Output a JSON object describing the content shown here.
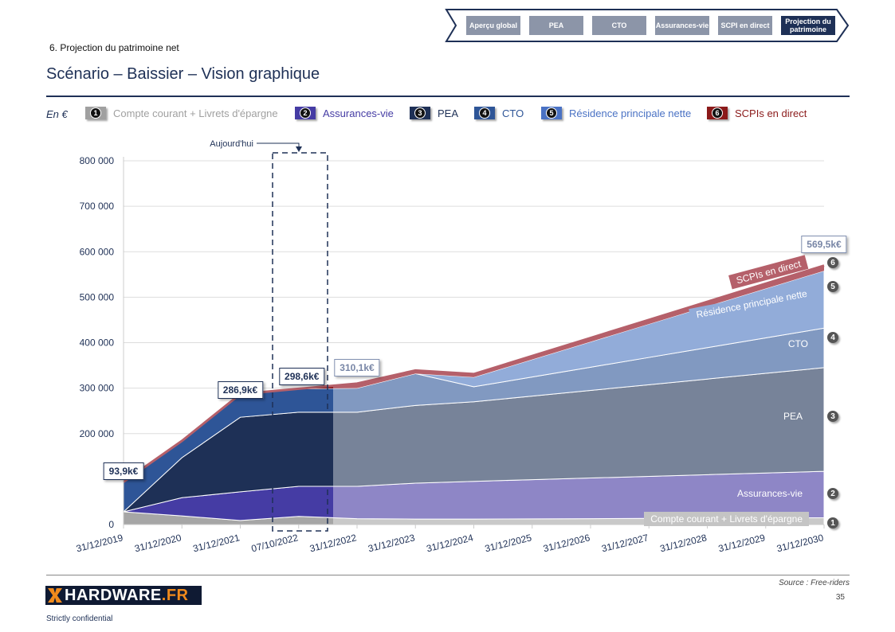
{
  "nav": {
    "items": [
      {
        "label": "Aperçu global",
        "active": false
      },
      {
        "label": "PEA",
        "active": false
      },
      {
        "label": "CTO",
        "active": false
      },
      {
        "label": "Assurances-vie",
        "active": false
      },
      {
        "label": "SCPI en direct",
        "active": false
      },
      {
        "label": "Projection du patrimoine",
        "active": true
      }
    ]
  },
  "header": {
    "section": "6. Projection du patrimoine net",
    "title": "Scénario – Baissier – Vision graphique"
  },
  "chart_data": {
    "type": "area",
    "stacked": true,
    "unit_label": "En €",
    "categories": [
      "31/12/2019",
      "31/12/2020",
      "31/12/2021",
      "07/10/2022",
      "31/12/2022",
      "31/12/2023",
      "31/12/2024",
      "31/12/2025",
      "31/12/2026",
      "31/12/2027",
      "31/12/2028",
      "31/12/2029",
      "31/12/2030"
    ],
    "ylim": [
      0,
      800000
    ],
    "yticks": [
      0,
      200000,
      300000,
      400000,
      500000,
      600000,
      700000,
      800000
    ],
    "ytick_labels": [
      "0",
      "200 000",
      "300 000",
      "400 000",
      "500 000",
      "600 000",
      "700 000",
      "800 000"
    ],
    "grid": true,
    "series": [
      {
        "num": "1",
        "name": "Compte courant + Livrets d'épargne",
        "color_hist": "#a6a6a6",
        "color_proj": "#c9c9c9",
        "legend_color": "#a0a0a0",
        "values": [
          28000,
          19000,
          9000,
          18000,
          13000,
          12000,
          12000,
          12500,
          13000,
          13500,
          14000,
          14500,
          15000
        ]
      },
      {
        "num": "2",
        "name": "Assurances-vie",
        "color_hist": "#453ca4",
        "color_proj": "#8e86c6",
        "legend_color": "#453ca4",
        "values": [
          0,
          40000,
          63000,
          66000,
          71000,
          79000,
          83000,
          86200,
          89300,
          92500,
          95700,
          98800,
          102000
        ]
      },
      {
        "num": "3",
        "name": "PEA",
        "color_hist": "#1e3056",
        "color_proj": "#778399",
        "legend_color": "#1e3056",
        "values": [
          0,
          88000,
          164000,
          163000,
          163000,
          171000,
          175000,
          183800,
          192700,
          201500,
          210300,
          219200,
          228000
        ]
      },
      {
        "num": "4",
        "name": "CTO",
        "color_hist": "#2e5597",
        "color_proj": "#8199c1",
        "legend_color": "#2e5597",
        "values": [
          65900,
          37000,
          50900,
          51600,
          53000,
          70000,
          33000,
          42000,
          51000,
          60000,
          69000,
          78000,
          87000
        ]
      },
      {
        "num": "5",
        "name": "Résidence principale nette",
        "color_hist": "#4a72c4",
        "color_proj": "#92acd9",
        "legend_color": "#4a72c4",
        "values": [
          0,
          0,
          0,
          0,
          0,
          0,
          21000,
          38500,
          56000,
          73500,
          91000,
          108500,
          126000
        ]
      },
      {
        "num": "6",
        "name": "SCPIs en direct",
        "color_hist": "#8b1a1a",
        "color_proj": "#b5606a",
        "legend_color": "#8b1a1a",
        "values": [
          0,
          0,
          0,
          0,
          10100,
          7000,
          7000,
          7800,
          8500,
          9300,
          10000,
          10800,
          11500
        ]
      }
    ],
    "series_chip_labels": [
      "Compte courant + Livrets d'épargne",
      "Assurances-vie",
      "PEA",
      "CTO",
      "Résidence principale nette",
      "SCPIs en direct"
    ],
    "callouts": [
      {
        "index": 0,
        "value": 93900,
        "label": "93,9k€",
        "style": "historic"
      },
      {
        "index": 2,
        "value": 286900,
        "label": "286,9k€",
        "style": "historic"
      },
      {
        "index": 3,
        "value": 298600,
        "label": "298,6k€",
        "style": "historic"
      },
      {
        "index": 4,
        "value": 310100,
        "label": "310,1k€",
        "style": "projected"
      },
      {
        "index": 12,
        "value": 569500,
        "label": "569,5k€",
        "style": "projected"
      }
    ],
    "today_marker": {
      "index": 3,
      "label": "Aujourd'hui"
    }
  },
  "footer": {
    "source": "Source : Free-riders",
    "page_number": "35",
    "logo": "HARDWARE.FR",
    "logo_main": "HARDWARE",
    "logo_suffix": ".FR",
    "confidential": "Strictly confidential"
  }
}
